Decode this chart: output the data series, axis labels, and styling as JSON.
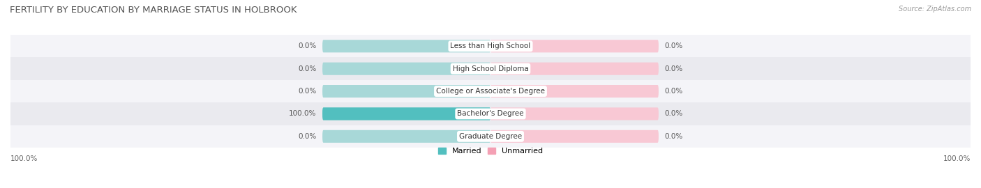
{
  "title": "FERTILITY BY EDUCATION BY MARRIAGE STATUS IN HOLBROOK",
  "source": "Source: ZipAtlas.com",
  "categories": [
    "Less than High School",
    "High School Diploma",
    "College or Associate's Degree",
    "Bachelor's Degree",
    "Graduate Degree"
  ],
  "married_values": [
    0.0,
    0.0,
    0.0,
    100.0,
    0.0
  ],
  "unmarried_values": [
    0.0,
    0.0,
    0.0,
    0.0,
    0.0
  ],
  "married_color": "#52BFBF",
  "unmarried_color": "#F4A0B4",
  "married_bg_color": "#A8D8D8",
  "unmarried_bg_color": "#F8C8D4",
  "row_bg_light": "#F4F4F8",
  "row_bg_dark": "#EAEAEF",
  "max_value": 100.0,
  "title_fontsize": 9.5,
  "label_fontsize": 7.5,
  "category_fontsize": 7.5,
  "legend_fontsize": 8,
  "source_fontsize": 7,
  "bar_height": 0.52,
  "figsize": [
    14.06,
    2.7
  ]
}
